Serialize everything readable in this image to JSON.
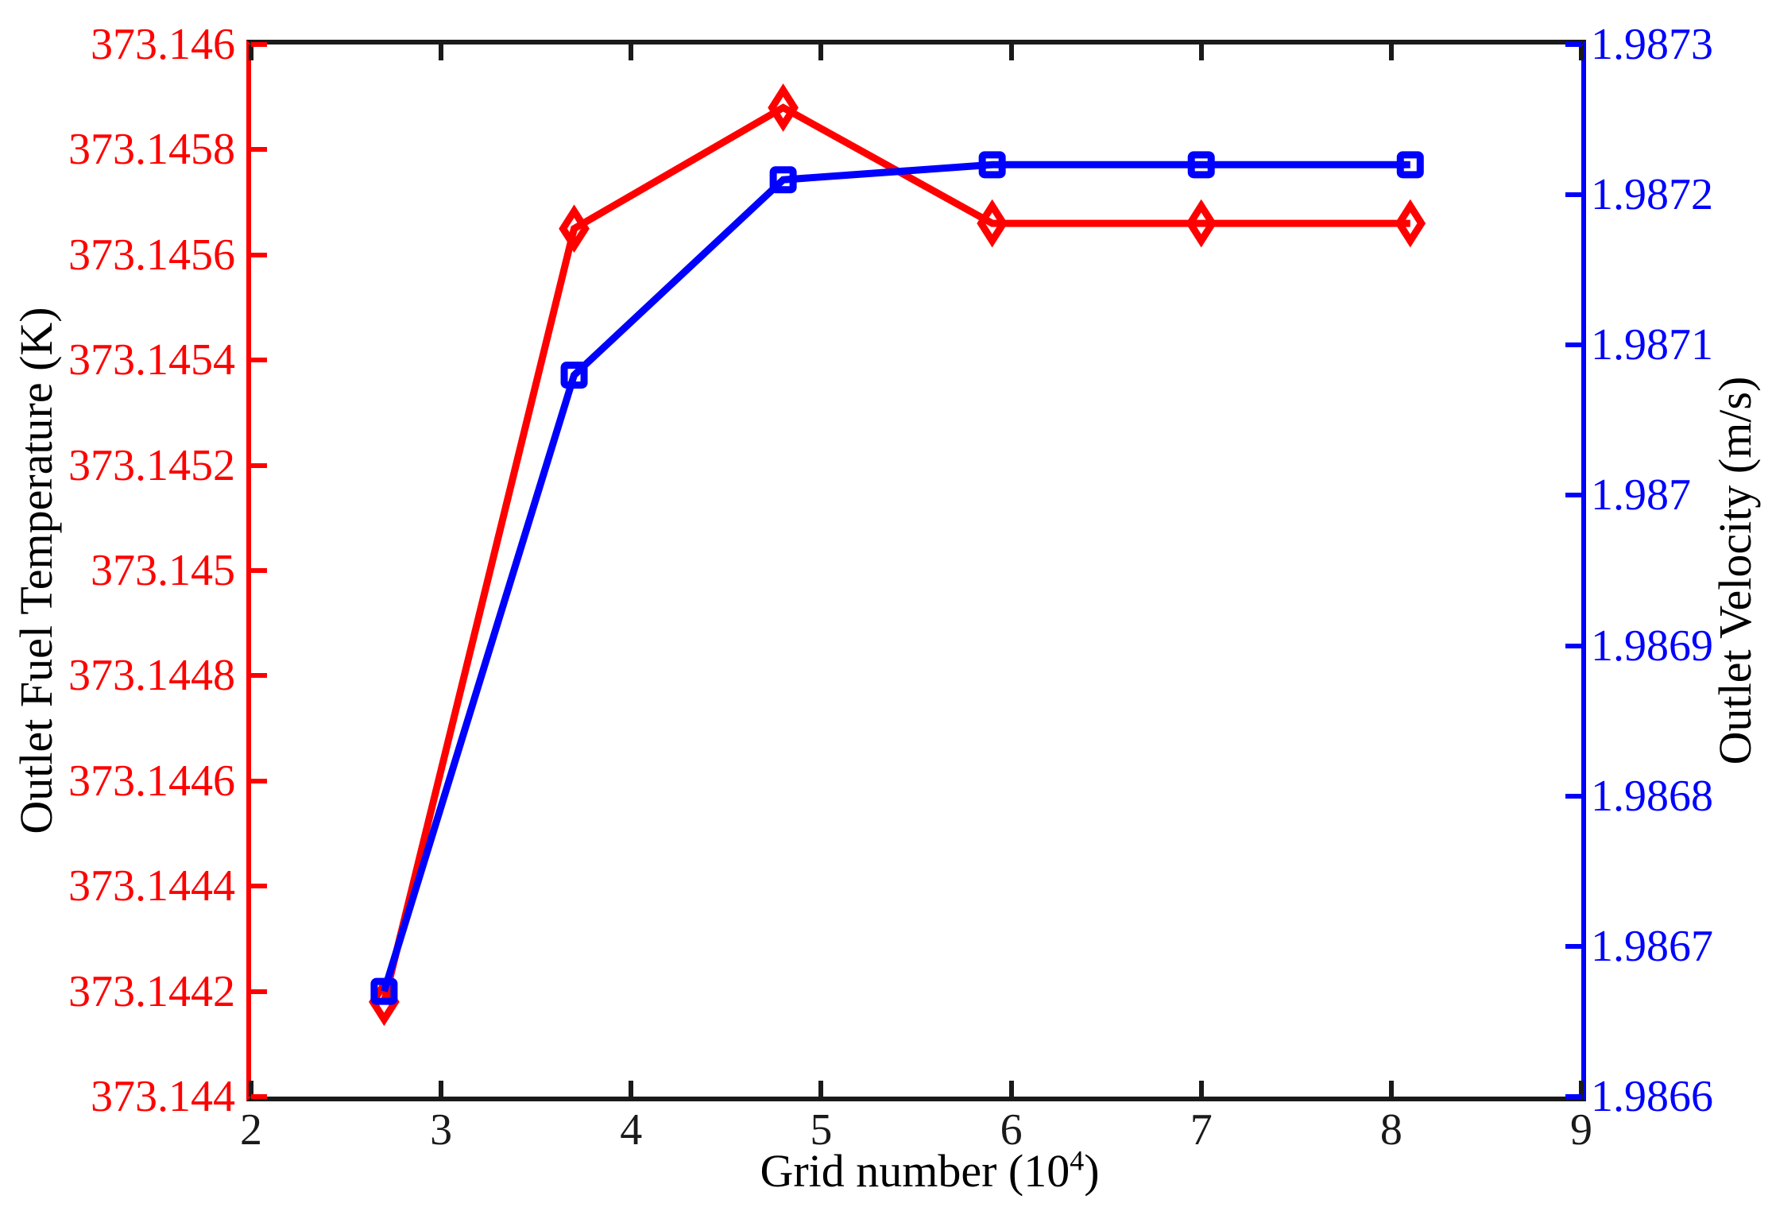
{
  "figure": {
    "background": "#ffffff",
    "frame_color": "#1a1a1a"
  },
  "chart_data": {
    "type": "line",
    "title": "",
    "grid": false,
    "legend": null,
    "x_axis": {
      "label": "Grid number (10^4)",
      "label_prefix": "Grid number (10",
      "label_exponent": "4",
      "label_suffix": ")",
      "min": 2,
      "max": 9,
      "tick_labels": [
        "2",
        "3",
        "4",
        "5",
        "6",
        "7",
        "8",
        "9"
      ],
      "color": "#1a1a1a"
    },
    "left_axis": {
      "label": "Outlet Fuel Temperature (K)",
      "min": 373.144,
      "max": 373.146,
      "tick_labels_top_to_bottom": [
        "373.146",
        "373.1458",
        "373.1456",
        "373.1454",
        "373.1452",
        "373.145",
        "373.1448",
        "373.1446",
        "373.1444",
        "373.1442",
        "373.144"
      ],
      "color": "#ff0000"
    },
    "right_axis": {
      "label": "Outlet Velocity (m/s)",
      "min": 1.9866,
      "max": 1.9873,
      "tick_labels_top_to_bottom": [
        "1.9873",
        "1.9872",
        "1.9871",
        "1.987",
        "1.9869",
        "1.9868",
        "1.9867",
        "1.9866"
      ],
      "color": "#0000ff"
    },
    "series": [
      {
        "name": "Outlet Fuel Temperature",
        "axis": "left",
        "color": "#ff0000",
        "marker": "diamond",
        "x": [
          2.7,
          3.7,
          4.8,
          5.9,
          7.0,
          8.1
        ],
        "y": [
          373.14418,
          373.14565,
          373.14588,
          373.14566,
          373.14566,
          373.14566
        ]
      },
      {
        "name": "Outlet Velocity",
        "axis": "right",
        "color": "#0000ff",
        "marker": "square",
        "x": [
          2.7,
          3.7,
          4.8,
          5.9,
          7.0,
          8.1
        ],
        "y": [
          1.98667,
          1.98708,
          1.98721,
          1.98722,
          1.98722,
          1.98722
        ]
      }
    ]
  }
}
